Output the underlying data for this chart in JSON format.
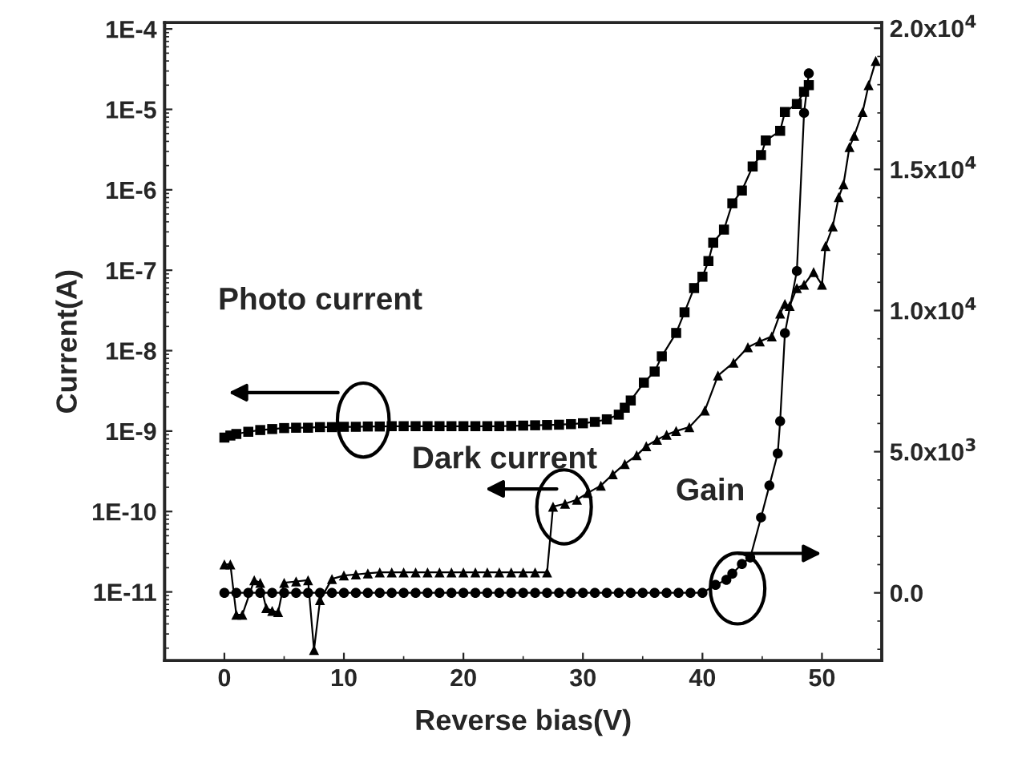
{
  "chart_data": {
    "type": "line",
    "xlabel": "Reverse bias(V)",
    "ylabel": "Current(A)",
    "xlim": [
      -5,
      55
    ],
    "xticks": [
      0,
      10,
      20,
      30,
      40,
      50
    ],
    "log": "y",
    "ylim": [
      1.4e-12,
      0.00012
    ],
    "yticks": [
      {
        "value": 1e-11,
        "label": "1E-11"
      },
      {
        "value": 1e-10,
        "label": "1E-10"
      },
      {
        "value": 1e-09,
        "label": "1E-9"
      },
      {
        "value": 1e-08,
        "label": "1E-8"
      },
      {
        "value": 1e-07,
        "label": "1E-7"
      },
      {
        "value": 1e-06,
        "label": "1E-6"
      },
      {
        "value": 1e-05,
        "label": "1E-5"
      },
      {
        "value": 0.0001,
        "label": "1E-4"
      }
    ],
    "y2lim": [
      -2400,
      20200
    ],
    "y2ticks": [
      {
        "value": 0,
        "label": "0.0"
      },
      {
        "value": 5000,
        "label": "5.0x10$^{3}$"
      },
      {
        "value": 10000,
        "label": "1.0x10$^{4}$"
      },
      {
        "value": 15000,
        "label": "1.5x10$^{4}$"
      },
      {
        "value": 20000,
        "label": "2.0x10$^{4}$"
      }
    ],
    "grid": false,
    "line_style": "solid",
    "series": [
      {
        "color": "#000000",
        "marker": "square",
        "x": [
          0,
          0.5,
          1,
          2,
          3,
          4,
          5,
          6,
          7,
          8,
          9,
          10,
          11,
          12,
          13,
          14,
          15,
          16,
          17,
          18,
          19,
          20,
          21,
          22,
          23,
          24,
          25,
          26,
          27,
          28,
          29,
          30,
          31,
          32,
          33,
          33.5,
          34,
          35.1,
          36,
          36.6,
          37.8,
          38.5,
          39.3,
          40.0,
          40.5,
          40.9,
          41.8,
          42.5,
          43.3,
          44.2,
          44.9,
          45.3,
          46.5,
          46.9,
          47.9,
          48.5,
          48.9
        ],
        "values": [
          8.3e-10,
          8.8e-10,
          9.2e-10,
          9.8e-10,
          1.03e-09,
          1.06e-09,
          1.09e-09,
          1.1e-09,
          1.1e-09,
          1.12e-09,
          1.12e-09,
          1.13e-09,
          1.13e-09,
          1.14e-09,
          1.14e-09,
          1.15e-09,
          1.15e-09,
          1.15e-09,
          1.15e-09,
          1.15e-09,
          1.15e-09,
          1.15e-09,
          1.15e-09,
          1.15e-09,
          1.15e-09,
          1.16e-09,
          1.17e-09,
          1.18e-09,
          1.19e-09,
          1.2e-09,
          1.22e-09,
          1.25e-09,
          1.3e-09,
          1.4e-09,
          1.6e-09,
          1.95e-09,
          2.4e-09,
          4e-09,
          5.5e-09,
          8.5e-09,
          1.66e-08,
          3e-08,
          6e-08,
          8.3e-08,
          1.3e-07,
          2.2e-07,
          3.2e-07,
          6.8e-07,
          9.8e-07,
          1.95e-06,
          2.7e-06,
          4.1e-06,
          5.4e-06,
          9.3e-06,
          1.17e-05,
          1.66e-05,
          2e-05
        ]
      },
      {
        "color": "#000000",
        "marker": "triangle",
        "x": [
          0,
          0.5,
          1,
          1.5,
          2.5,
          3,
          3.5,
          4,
          4.5,
          5,
          6,
          7,
          7.5,
          8,
          9,
          10,
          11,
          12,
          13,
          14,
          15,
          16,
          17,
          18,
          19,
          20,
          21,
          22,
          23,
          24,
          25,
          26,
          27,
          27.5,
          28.5,
          29.5,
          30.4,
          31.5,
          32.5,
          33.5,
          34.5,
          35.3,
          36.2,
          37,
          37.8,
          38.9,
          40.2,
          41.3,
          42.6,
          43.8,
          44.8,
          45.8,
          46.5,
          46.9,
          47.3,
          47.9,
          48.5,
          49.3,
          50.0,
          50.3,
          50.9,
          51.4,
          51.8,
          52.3,
          52.7,
          53.4,
          53.9,
          54.5
        ],
        "values": [
          2.2e-11,
          2.2e-11,
          5.2e-12,
          5.2e-12,
          1.4e-11,
          1.3e-11,
          6.3e-12,
          5.8e-12,
          5.6e-12,
          1.3e-11,
          1.35e-11,
          1.4e-11,
          1.9e-12,
          7.9e-12,
          1.45e-11,
          1.6e-11,
          1.65e-11,
          1.7e-11,
          1.75e-11,
          1.75e-11,
          1.75e-11,
          1.75e-11,
          1.75e-11,
          1.75e-11,
          1.75e-11,
          1.75e-11,
          1.75e-11,
          1.75e-11,
          1.75e-11,
          1.75e-11,
          1.75e-11,
          1.75e-11,
          1.75e-11,
          1.15e-10,
          1.25e-10,
          1.4e-10,
          1.7e-10,
          2.1e-10,
          2.9e-10,
          3.9e-10,
          5e-10,
          6.5e-10,
          7.8e-10,
          9e-10,
          1e-09,
          1.12e-09,
          1.8e-09,
          4.9e-09,
          7.1e-09,
          1.1e-08,
          1.3e-08,
          1.5e-08,
          2.9e-08,
          3.8e-08,
          3.6e-08,
          6e-08,
          6.6e-08,
          9.5e-08,
          6.6e-08,
          2e-07,
          3.5e-07,
          8.1e-07,
          1.17e-06,
          3.4e-06,
          4.7e-06,
          9.3e-06,
          2e-05,
          4e-05
        ]
      },
      {
        "color": "#000000",
        "marker": "circle",
        "axis": "y2",
        "x": [
          0,
          1,
          2,
          3,
          4,
          5,
          6,
          7,
          8,
          9,
          10,
          11,
          12,
          13,
          14,
          15,
          16,
          17,
          18,
          19,
          20,
          21,
          22,
          23,
          24,
          25,
          26,
          27,
          28,
          29,
          30,
          31,
          32,
          33,
          34,
          35,
          36,
          37,
          38,
          39,
          40,
          41.1,
          42.0,
          42.5,
          43.3,
          44.0,
          44.9,
          45.6,
          46.3,
          46.5,
          46.9,
          47.9,
          48.5,
          48.9
        ],
        "values": [
          0,
          0,
          0,
          0,
          0,
          0,
          0,
          0,
          0,
          0,
          0,
          0,
          0,
          0,
          0,
          0,
          0,
          0,
          0,
          0,
          0,
          0,
          0,
          0,
          0,
          0,
          0,
          0,
          0,
          0,
          0,
          0,
          0,
          0,
          0,
          0,
          0,
          0,
          0,
          0,
          0,
          280,
          460,
          680,
          1020,
          1250,
          2670,
          3800,
          4940,
          6080,
          9200,
          11400,
          17000,
          18400
        ]
      }
    ],
    "annotations": [
      "Photo current",
      "Dark current",
      "Gain"
    ]
  }
}
